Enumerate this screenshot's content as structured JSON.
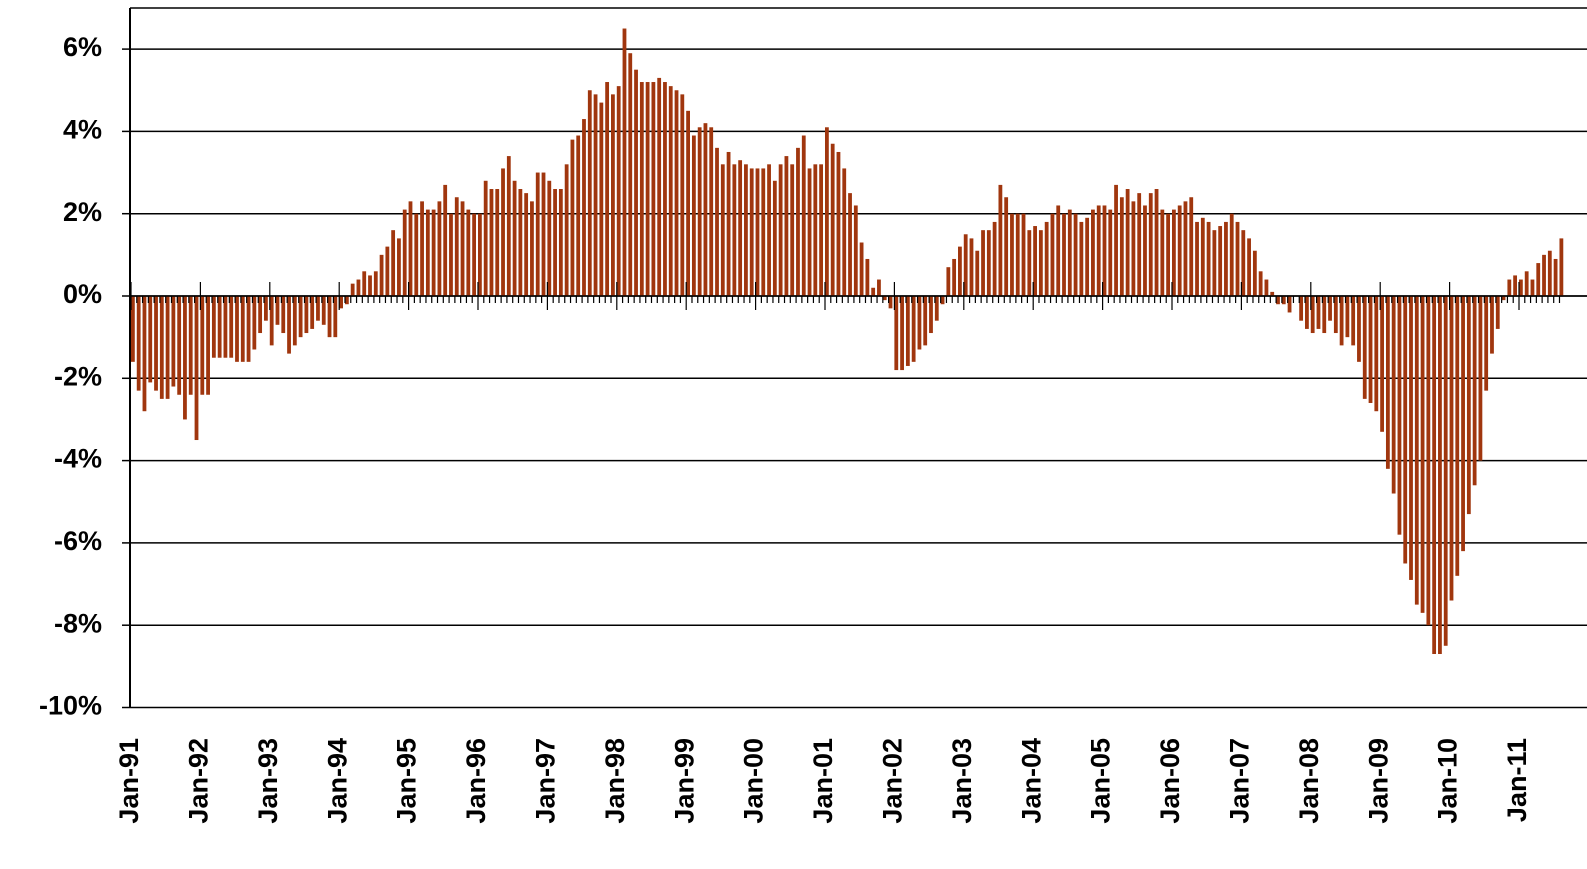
{
  "chart_data": {
    "type": "bar",
    "color": "#a0360e",
    "grid": true,
    "ylim": [
      -10,
      7
    ],
    "yticks": [
      {
        "value": -10,
        "label": "-10%"
      },
      {
        "value": -8,
        "label": "-8%"
      },
      {
        "value": -6,
        "label": "-6%"
      },
      {
        "value": -4,
        "label": "-4%"
      },
      {
        "value": -2,
        "label": "-2%"
      },
      {
        "value": 0,
        "label": "0%"
      },
      {
        "value": 2,
        "label": "2%"
      },
      {
        "value": 4,
        "label": "4%"
      },
      {
        "value": 6,
        "label": "6%"
      }
    ],
    "categories": [
      "Jan-91",
      null,
      null,
      null,
      null,
      null,
      null,
      null,
      null,
      null,
      null,
      null,
      "Jan-92",
      null,
      null,
      null,
      null,
      null,
      null,
      null,
      null,
      null,
      null,
      null,
      "Jan-93",
      null,
      null,
      null,
      null,
      null,
      null,
      null,
      null,
      null,
      null,
      null,
      "Jan-94",
      null,
      null,
      null,
      null,
      null,
      null,
      null,
      null,
      null,
      null,
      null,
      "Jan-95",
      null,
      null,
      null,
      null,
      null,
      null,
      null,
      null,
      null,
      null,
      null,
      "Jan-96",
      null,
      null,
      null,
      null,
      null,
      null,
      null,
      null,
      null,
      null,
      null,
      "Jan-97",
      null,
      null,
      null,
      null,
      null,
      null,
      null,
      null,
      null,
      null,
      null,
      "Jan-98",
      null,
      null,
      null,
      null,
      null,
      null,
      null,
      null,
      null,
      null,
      null,
      "Jan-99",
      null,
      null,
      null,
      null,
      null,
      null,
      null,
      null,
      null,
      null,
      null,
      "Jan-00",
      null,
      null,
      null,
      null,
      null,
      null,
      null,
      null,
      null,
      null,
      null,
      "Jan-01",
      null,
      null,
      null,
      null,
      null,
      null,
      null,
      null,
      null,
      null,
      null,
      "Jan-02",
      null,
      null,
      null,
      null,
      null,
      null,
      null,
      null,
      null,
      null,
      null,
      "Jan-03",
      null,
      null,
      null,
      null,
      null,
      null,
      null,
      null,
      null,
      null,
      null,
      "Jan-04",
      null,
      null,
      null,
      null,
      null,
      null,
      null,
      null,
      null,
      null,
      null,
      "Jan-05",
      null,
      null,
      null,
      null,
      null,
      null,
      null,
      null,
      null,
      null,
      null,
      "Jan-06",
      null,
      null,
      null,
      null,
      null,
      null,
      null,
      null,
      null,
      null,
      null,
      "Jan-07",
      null,
      null,
      null,
      null,
      null,
      null,
      null,
      null,
      null,
      null,
      null,
      "Jan-08",
      null,
      null,
      null,
      null,
      null,
      null,
      null,
      null,
      null,
      null,
      null,
      "Jan-09",
      null,
      null,
      null,
      null,
      null,
      null,
      null,
      null,
      null,
      null,
      null,
      "Jan-10",
      null,
      null,
      null,
      null,
      null,
      null,
      null,
      null,
      null,
      null,
      null,
      "Jan-11",
      null,
      null,
      null,
      null,
      null,
      null,
      null
    ],
    "values": [
      -1.6,
      -2.3,
      -2.8,
      -2.1,
      -2.3,
      -2.5,
      -2.5,
      -2.2,
      -2.4,
      -3.0,
      -2.4,
      -3.5,
      -2.4,
      -2.4,
      -1.5,
      -1.5,
      -1.5,
      -1.5,
      -1.6,
      -1.6,
      -1.6,
      -1.3,
      -0.9,
      -0.6,
      -1.2,
      -0.7,
      -0.9,
      -1.4,
      -1.2,
      -1.0,
      -0.9,
      -0.8,
      -0.6,
      -0.7,
      -1.0,
      -1.0,
      -0.3,
      -0.2,
      0.3,
      0.4,
      0.6,
      0.5,
      0.6,
      1.0,
      1.2,
      1.6,
      1.4,
      2.1,
      2.3,
      2.0,
      2.3,
      2.1,
      2.1,
      2.3,
      2.7,
      2.0,
      2.4,
      2.3,
      2.1,
      2.0,
      2.0,
      2.8,
      2.6,
      2.6,
      3.1,
      3.4,
      2.8,
      2.6,
      2.5,
      2.3,
      3.0,
      3.0,
      2.8,
      2.6,
      2.6,
      3.2,
      3.8,
      3.9,
      4.3,
      5.0,
      4.9,
      4.7,
      5.2,
      4.9,
      5.1,
      6.5,
      5.9,
      5.5,
      5.2,
      5.2,
      5.2,
      5.3,
      5.2,
      5.1,
      5.0,
      4.9,
      4.5,
      3.9,
      4.1,
      4.2,
      4.1,
      3.6,
      3.2,
      3.5,
      3.2,
      3.3,
      3.2,
      3.1,
      3.1,
      3.1,
      3.2,
      2.8,
      3.2,
      3.4,
      3.2,
      3.6,
      3.9,
      3.1,
      3.2,
      3.2,
      4.1,
      3.7,
      3.5,
      3.1,
      2.5,
      2.2,
      1.3,
      0.9,
      0.2,
      0.4,
      -0.1,
      -0.3,
      -1.8,
      -1.8,
      -1.7,
      -1.6,
      -1.3,
      -1.2,
      -0.9,
      -0.6,
      -0.2,
      0.7,
      0.9,
      1.2,
      1.5,
      1.4,
      1.1,
      1.6,
      1.6,
      1.8,
      2.7,
      2.4,
      2.0,
      2.0,
      2.0,
      1.6,
      1.7,
      1.6,
      1.8,
      2.0,
      2.2,
      2.0,
      2.1,
      2.0,
      1.8,
      1.9,
      2.1,
      2.2,
      2.2,
      2.1,
      2.7,
      2.4,
      2.6,
      2.3,
      2.5,
      2.2,
      2.5,
      2.6,
      2.1,
      2.0,
      2.1,
      2.2,
      2.3,
      2.4,
      1.8,
      1.9,
      1.8,
      1.6,
      1.7,
      1.8,
      2.0,
      1.8,
      1.6,
      1.4,
      1.1,
      0.6,
      0.4,
      0.1,
      -0.2,
      -0.2,
      -0.4,
      0.0,
      -0.6,
      -0.8,
      -0.9,
      -0.8,
      -0.9,
      -0.6,
      -0.9,
      -1.2,
      -1.0,
      -1.2,
      -1.6,
      -2.5,
      -2.6,
      -2.8,
      -3.3,
      -4.2,
      -4.8,
      -5.8,
      -6.5,
      -6.9,
      -7.5,
      -7.7,
      -8.0,
      -8.7,
      -8.7,
      -8.5,
      -7.4,
      -6.8,
      -6.2,
      -5.3,
      -4.6,
      -4.0,
      -2.3,
      -1.4,
      -0.8,
      -0.1,
      0.4,
      0.5,
      0.4,
      0.6,
      0.4,
      0.8,
      1.0,
      1.1,
      0.9,
      1.4
    ]
  }
}
